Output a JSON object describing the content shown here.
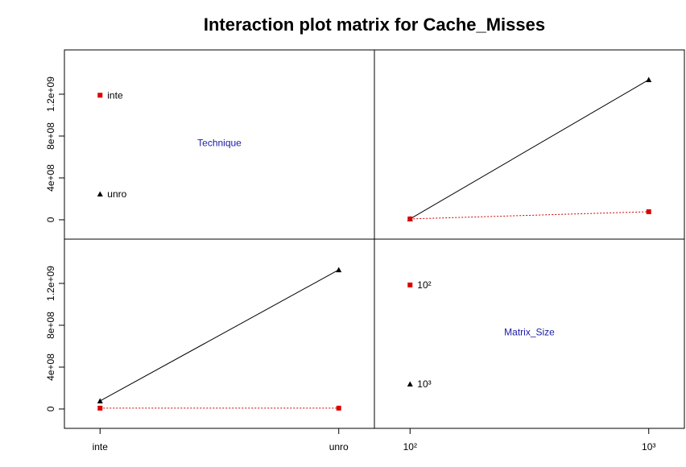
{
  "title": "Interaction plot matrix for Cache_Misses",
  "chart_data": [
    {
      "type": "label",
      "label": "Technique",
      "legend": [
        {
          "name": "inte",
          "color": "#dd0000",
          "marker": "square",
          "value": 1190000000
        },
        {
          "name": "unro",
          "color": "#000000",
          "marker": "triangle",
          "value": 246000000
        }
      ],
      "ylim": [
        -185000000,
        1623000000
      ],
      "yticks": [
        0,
        {
          "value": 400000000,
          "label": "4e+08"
        },
        {
          "value": 800000000,
          "label": "8e+08"
        },
        {
          "value": 1200000000,
          "label": "1.2e+09"
        }
      ]
    },
    {
      "type": "line",
      "series": [
        {
          "color": "#000000",
          "marker": "triangle",
          "dash": false,
          "values": [
            8000000,
            1338000000
          ]
        },
        {
          "color": "#cc0000",
          "marker": "square",
          "dash": true,
          "values": [
            8000000,
            77000000
          ]
        }
      ]
    },
    {
      "type": "line",
      "categories": [
        "inte",
        "unro"
      ],
      "series": [
        {
          "color": "#000000",
          "marker": "triangle",
          "dash": false,
          "values": [
            77000000,
            1330000000
          ]
        },
        {
          "color": "#cc0000",
          "marker": "square",
          "dash": true,
          "values": [
            8000000,
            8000000
          ]
        }
      ],
      "ylim": [
        -185000000,
        1623000000
      ],
      "yticks": [
        0,
        {
          "value": 400000000,
          "label": "4e+08"
        },
        {
          "value": 800000000,
          "label": "8e+08"
        },
        {
          "value": 1200000000,
          "label": "1.2e+09"
        }
      ]
    },
    {
      "type": "label",
      "label": "Matrix_Size",
      "categories": [
        "10²",
        "10³"
      ],
      "legend": [
        {
          "name": "10²",
          "color": "#dd0000",
          "marker": "square",
          "value": 1185000000
        },
        {
          "name": "10³",
          "color": "#000000",
          "marker": "triangle",
          "value": 238000000
        }
      ]
    }
  ]
}
